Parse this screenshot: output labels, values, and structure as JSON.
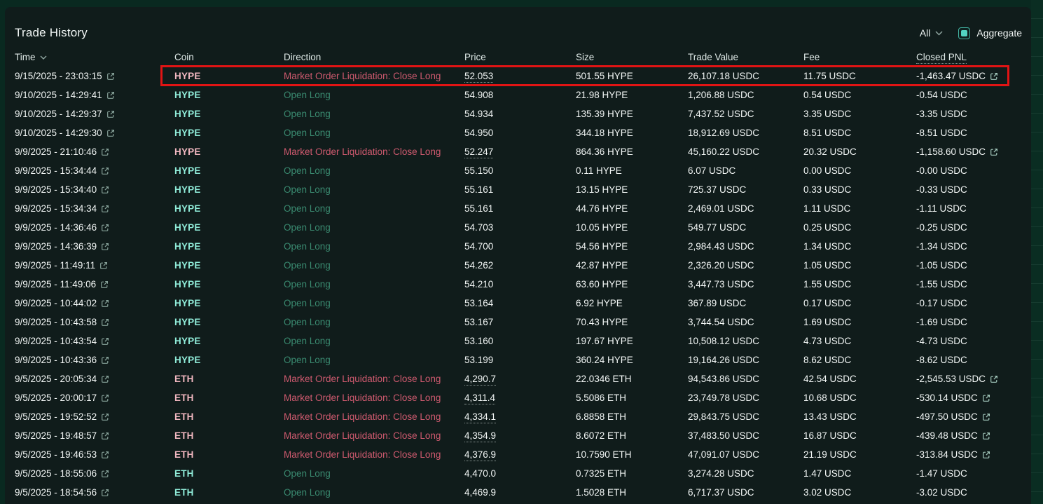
{
  "title": "Trade History",
  "controls": {
    "filter_value": "All",
    "aggregate_label": "Aggregate",
    "aggregate_checked": true
  },
  "icons": {
    "dropdown": "chevron-down",
    "time_sort": "chevron-down",
    "row_link": "external-link",
    "pnl_link": "external-link"
  },
  "colors": {
    "page_background": "#092920",
    "panel_background": "#101c1b",
    "accent_teal": "#52d5c3",
    "coin_long": "#90ecd9",
    "coin_liquidation": "#f2b8c1",
    "direction_long": "#3a8a70",
    "direction_liquidation": "#cf5a6f",
    "text_primary": "#f3f7f6",
    "annotation_red": "#e11414"
  },
  "annotation": {
    "type": "highlight-box",
    "target_row_index": 0,
    "color": "#e11414"
  },
  "table": {
    "columns": [
      "Time",
      "Coin",
      "Direction",
      "Price",
      "Size",
      "Trade Value",
      "Fee",
      "Closed PNL"
    ],
    "rows": [
      {
        "time": "9/15/2025 - 23:03:15",
        "coin": "HYPE",
        "direction": "Market Order Liquidation: Close Long",
        "side": "sell",
        "price": "52.053",
        "price_underline": true,
        "size": "501.55 HYPE",
        "trade_value": "26,107.18 USDC",
        "fee": "11.75 USDC",
        "closed_pnl": "-1,463.47 USDC",
        "pnl_link": true,
        "highlighted": true
      },
      {
        "time": "9/10/2025 - 14:29:41",
        "coin": "HYPE",
        "direction": "Open Long",
        "side": "buy",
        "price": "54.908",
        "price_underline": false,
        "size": "21.98 HYPE",
        "trade_value": "1,206.88 USDC",
        "fee": "0.54 USDC",
        "closed_pnl": "-0.54 USDC",
        "pnl_link": false,
        "highlighted": false
      },
      {
        "time": "9/10/2025 - 14:29:37",
        "coin": "HYPE",
        "direction": "Open Long",
        "side": "buy",
        "price": "54.934",
        "price_underline": false,
        "size": "135.39 HYPE",
        "trade_value": "7,437.52 USDC",
        "fee": "3.35 USDC",
        "closed_pnl": "-3.35 USDC",
        "pnl_link": false,
        "highlighted": false
      },
      {
        "time": "9/10/2025 - 14:29:30",
        "coin": "HYPE",
        "direction": "Open Long",
        "side": "buy",
        "price": "54.950",
        "price_underline": false,
        "size": "344.18 HYPE",
        "trade_value": "18,912.69 USDC",
        "fee": "8.51 USDC",
        "closed_pnl": "-8.51 USDC",
        "pnl_link": false,
        "highlighted": false
      },
      {
        "time": "9/9/2025 - 21:10:46",
        "coin": "HYPE",
        "direction": "Market Order Liquidation: Close Long",
        "side": "sell",
        "price": "52.247",
        "price_underline": true,
        "size": "864.36 HYPE",
        "trade_value": "45,160.22 USDC",
        "fee": "20.32 USDC",
        "closed_pnl": "-1,158.60 USDC",
        "pnl_link": true,
        "highlighted": false
      },
      {
        "time": "9/9/2025 - 15:34:44",
        "coin": "HYPE",
        "direction": "Open Long",
        "side": "buy",
        "price": "55.150",
        "price_underline": false,
        "size": "0.11 HYPE",
        "trade_value": "6.07 USDC",
        "fee": "0.00 USDC",
        "closed_pnl": "-0.00 USDC",
        "pnl_link": false,
        "highlighted": false
      },
      {
        "time": "9/9/2025 - 15:34:40",
        "coin": "HYPE",
        "direction": "Open Long",
        "side": "buy",
        "price": "55.161",
        "price_underline": false,
        "size": "13.15 HYPE",
        "trade_value": "725.37 USDC",
        "fee": "0.33 USDC",
        "closed_pnl": "-0.33 USDC",
        "pnl_link": false,
        "highlighted": false
      },
      {
        "time": "9/9/2025 - 15:34:34",
        "coin": "HYPE",
        "direction": "Open Long",
        "side": "buy",
        "price": "55.161",
        "price_underline": false,
        "size": "44.76 HYPE",
        "trade_value": "2,469.01 USDC",
        "fee": "1.11 USDC",
        "closed_pnl": "-1.11 USDC",
        "pnl_link": false,
        "highlighted": false
      },
      {
        "time": "9/9/2025 - 14:36:46",
        "coin": "HYPE",
        "direction": "Open Long",
        "side": "buy",
        "price": "54.703",
        "price_underline": false,
        "size": "10.05 HYPE",
        "trade_value": "549.77 USDC",
        "fee": "0.25 USDC",
        "closed_pnl": "-0.25 USDC",
        "pnl_link": false,
        "highlighted": false
      },
      {
        "time": "9/9/2025 - 14:36:39",
        "coin": "HYPE",
        "direction": "Open Long",
        "side": "buy",
        "price": "54.700",
        "price_underline": false,
        "size": "54.56 HYPE",
        "trade_value": "2,984.43 USDC",
        "fee": "1.34 USDC",
        "closed_pnl": "-1.34 USDC",
        "pnl_link": false,
        "highlighted": false
      },
      {
        "time": "9/9/2025 - 11:49:11",
        "coin": "HYPE",
        "direction": "Open Long",
        "side": "buy",
        "price": "54.262",
        "price_underline": false,
        "size": "42.87 HYPE",
        "trade_value": "2,326.20 USDC",
        "fee": "1.05 USDC",
        "closed_pnl": "-1.05 USDC",
        "pnl_link": false,
        "highlighted": false
      },
      {
        "time": "9/9/2025 - 11:49:06",
        "coin": "HYPE",
        "direction": "Open Long",
        "side": "buy",
        "price": "54.210",
        "price_underline": false,
        "size": "63.60 HYPE",
        "trade_value": "3,447.73 USDC",
        "fee": "1.55 USDC",
        "closed_pnl": "-1.55 USDC",
        "pnl_link": false,
        "highlighted": false
      },
      {
        "time": "9/9/2025 - 10:44:02",
        "coin": "HYPE",
        "direction": "Open Long",
        "side": "buy",
        "price": "53.164",
        "price_underline": false,
        "size": "6.92 HYPE",
        "trade_value": "367.89 USDC",
        "fee": "0.17 USDC",
        "closed_pnl": "-0.17 USDC",
        "pnl_link": false,
        "highlighted": false
      },
      {
        "time": "9/9/2025 - 10:43:58",
        "coin": "HYPE",
        "direction": "Open Long",
        "side": "buy",
        "price": "53.167",
        "price_underline": false,
        "size": "70.43 HYPE",
        "trade_value": "3,744.54 USDC",
        "fee": "1.69 USDC",
        "closed_pnl": "-1.69 USDC",
        "pnl_link": false,
        "highlighted": false
      },
      {
        "time": "9/9/2025 - 10:43:54",
        "coin": "HYPE",
        "direction": "Open Long",
        "side": "buy",
        "price": "53.160",
        "price_underline": false,
        "size": "197.67 HYPE",
        "trade_value": "10,508.12 USDC",
        "fee": "4.73 USDC",
        "closed_pnl": "-4.73 USDC",
        "pnl_link": false,
        "highlighted": false
      },
      {
        "time": "9/9/2025 - 10:43:36",
        "coin": "HYPE",
        "direction": "Open Long",
        "side": "buy",
        "price": "53.199",
        "price_underline": false,
        "size": "360.24 HYPE",
        "trade_value": "19,164.26 USDC",
        "fee": "8.62 USDC",
        "closed_pnl": "-8.62 USDC",
        "pnl_link": false,
        "highlighted": false
      },
      {
        "time": "9/5/2025 - 20:05:34",
        "coin": "ETH",
        "direction": "Market Order Liquidation: Close Long",
        "side": "sell",
        "price": "4,290.7",
        "price_underline": true,
        "size": "22.0346 ETH",
        "trade_value": "94,543.86 USDC",
        "fee": "42.54 USDC",
        "closed_pnl": "-2,545.53 USDC",
        "pnl_link": true,
        "highlighted": false
      },
      {
        "time": "9/5/2025 - 20:00:17",
        "coin": "ETH",
        "direction": "Market Order Liquidation: Close Long",
        "side": "sell",
        "price": "4,311.4",
        "price_underline": true,
        "size": "5.5086 ETH",
        "trade_value": "23,749.78 USDC",
        "fee": "10.68 USDC",
        "closed_pnl": "-530.14 USDC",
        "pnl_link": true,
        "highlighted": false
      },
      {
        "time": "9/5/2025 - 19:52:52",
        "coin": "ETH",
        "direction": "Market Order Liquidation: Close Long",
        "side": "sell",
        "price": "4,334.1",
        "price_underline": true,
        "size": "6.8858 ETH",
        "trade_value": "29,843.75 USDC",
        "fee": "13.43 USDC",
        "closed_pnl": "-497.50 USDC",
        "pnl_link": true,
        "highlighted": false
      },
      {
        "time": "9/5/2025 - 19:48:57",
        "coin": "ETH",
        "direction": "Market Order Liquidation: Close Long",
        "side": "sell",
        "price": "4,354.9",
        "price_underline": true,
        "size": "8.6072 ETH",
        "trade_value": "37,483.50 USDC",
        "fee": "16.87 USDC",
        "closed_pnl": "-439.48 USDC",
        "pnl_link": true,
        "highlighted": false
      },
      {
        "time": "9/5/2025 - 19:46:53",
        "coin": "ETH",
        "direction": "Market Order Liquidation: Close Long",
        "side": "sell",
        "price": "4,376.9",
        "price_underline": true,
        "size": "10.7590 ETH",
        "trade_value": "47,091.07 USDC",
        "fee": "21.19 USDC",
        "closed_pnl": "-313.84 USDC",
        "pnl_link": true,
        "highlighted": false
      },
      {
        "time": "9/5/2025 - 18:55:06",
        "coin": "ETH",
        "direction": "Open Long",
        "side": "buy",
        "price": "4,470.0",
        "price_underline": false,
        "size": "0.7325 ETH",
        "trade_value": "3,274.28 USDC",
        "fee": "1.47 USDC",
        "closed_pnl": "-1.47 USDC",
        "pnl_link": false,
        "highlighted": false
      },
      {
        "time": "9/5/2025 - 18:54:56",
        "coin": "ETH",
        "direction": "Open Long",
        "side": "buy",
        "price": "4,469.9",
        "price_underline": false,
        "size": "1.5028 ETH",
        "trade_value": "6,717.37 USDC",
        "fee": "3.02 USDC",
        "closed_pnl": "-3.02 USDC",
        "pnl_link": false,
        "highlighted": false
      }
    ]
  }
}
